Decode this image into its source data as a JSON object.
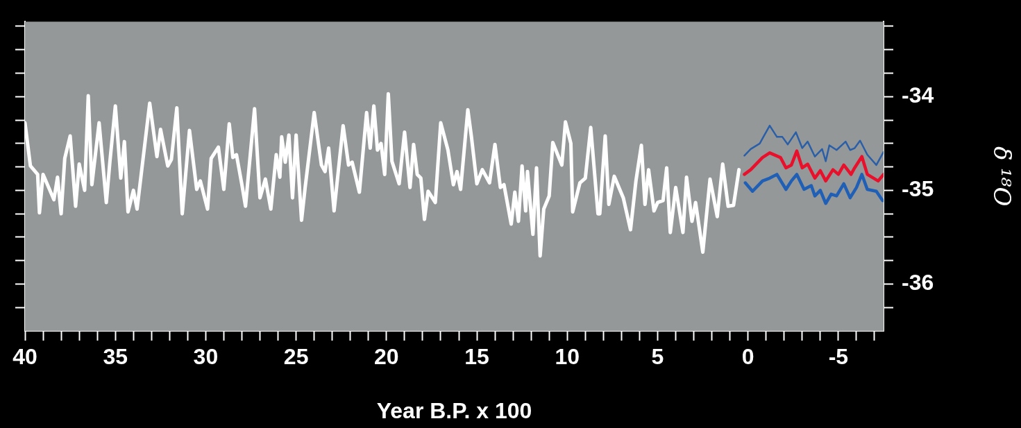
{
  "chart_data": {
    "type": "line",
    "xlabel": "Year B.P. x 100",
    "ylabel": "δ ¹⁸O",
    "xlim": [
      40,
      -7.5
    ],
    "ylim": [
      -36.5,
      -33.2
    ],
    "xticks": [
      40,
      {
        "value": 39,
        "label": null
      },
      {
        "value": 38,
        "label": null
      },
      {
        "value": 37,
        "label": null
      },
      {
        "value": 36,
        "label": null
      },
      35,
      {
        "value": 34,
        "label": null
      },
      {
        "value": 33,
        "label": null
      },
      {
        "value": 32,
        "label": null
      },
      {
        "value": 31,
        "label": null
      },
      30,
      {
        "value": 29,
        "label": null
      },
      {
        "value": 28,
        "label": null
      },
      {
        "value": 27,
        "label": null
      },
      {
        "value": 26,
        "label": null
      },
      25,
      {
        "value": 24,
        "label": null
      },
      {
        "value": 23,
        "label": null
      },
      {
        "value": 22,
        "label": null
      },
      {
        "value": 21,
        "label": null
      },
      20,
      {
        "value": 19,
        "label": null
      },
      {
        "value": 18,
        "label": null
      },
      {
        "value": 17,
        "label": null
      },
      {
        "value": 16,
        "label": null
      },
      15,
      {
        "value": 14,
        "label": null
      },
      {
        "value": 13,
        "label": null
      },
      {
        "value": 12,
        "label": null
      },
      {
        "value": 11,
        "label": null
      },
      10,
      {
        "value": 9,
        "label": null
      },
      {
        "value": 8,
        "label": null
      },
      {
        "value": 7,
        "label": null
      },
      {
        "value": 6,
        "label": null
      },
      5,
      {
        "value": 4,
        "label": null
      },
      {
        "value": 3,
        "label": null
      },
      {
        "value": 2,
        "label": null
      },
      {
        "value": 1,
        "label": null
      },
      0,
      {
        "value": -1,
        "label": null
      },
      {
        "value": -2,
        "label": null
      },
      {
        "value": -3,
        "label": null
      },
      {
        "value": -4,
        "label": null
      },
      -5,
      {
        "value": -6,
        "label": null
      },
      {
        "value": -7,
        "label": null
      }
    ],
    "yticks": [
      {
        "value": -36.25,
        "label": null
      },
      -36,
      {
        "value": -35.75,
        "label": null
      },
      {
        "value": -35.5,
        "label": null
      },
      {
        "value": -35.25,
        "label": null
      },
      -35,
      {
        "value": -34.75,
        "label": null
      },
      {
        "value": -34.5,
        "label": null
      },
      {
        "value": -34.25,
        "label": null
      },
      -34,
      {
        "value": -33.75,
        "label": null
      },
      {
        "value": -33.5,
        "label": null
      },
      {
        "value": -33.25,
        "label": null
      }
    ],
    "marker": "none",
    "line_style": "solid",
    "series": [
      {
        "color": "#ffffff",
        "x": [
          40.0,
          39.7,
          39.3,
          39.2,
          39.0,
          38.4,
          38.2,
          38.0,
          37.8,
          37.5,
          37.2,
          37.0,
          36.7,
          36.5,
          36.3,
          35.9,
          35.5,
          35.3,
          35.0,
          34.7,
          34.5,
          34.3,
          34.0,
          33.8,
          33.1,
          32.7,
          32.5,
          32.1,
          31.9,
          31.6,
          31.3,
          30.9,
          30.5,
          30.3,
          29.9,
          29.7,
          29.3,
          29.0,
          28.7,
          28.5,
          28.3,
          28.0,
          27.8,
          27.3,
          27.0,
          26.7,
          26.4,
          26.1,
          25.9,
          25.8,
          25.6,
          25.4,
          25.2,
          25.0,
          24.7,
          24.5,
          24.0,
          23.6,
          23.4,
          23.2,
          22.9,
          22.4,
          22.1,
          21.9,
          21.5,
          21.1,
          20.9,
          20.7,
          20.5,
          20.3,
          20.1,
          19.9,
          19.7,
          19.3,
          19.0,
          18.7,
          18.5,
          18.3,
          18.1,
          17.9,
          17.7,
          17.3,
          17.0,
          16.6,
          16.3,
          16.1,
          15.9,
          15.5,
          15.3,
          15.0,
          14.7,
          14.3,
          14.0,
          13.7,
          13.5,
          13.1,
          12.9,
          12.7,
          12.5,
          12.3,
          12.2,
          11.9,
          11.7,
          11.5,
          11.3,
          11.0,
          10.8,
          10.3,
          10.1,
          9.8,
          9.7,
          9.3,
          9.0,
          8.7,
          8.3,
          8.2,
          7.9,
          7.7,
          7.4,
          6.9,
          6.5,
          6.2,
          5.9,
          5.7,
          5.5,
          5.2,
          5.0,
          4.7,
          4.5,
          4.3,
          4.0,
          3.6,
          3.4,
          3.1,
          2.9,
          2.5,
          2.1,
          1.7,
          1.4,
          1.1,
          0.8,
          0.5
        ],
        "values": [
          -34.28,
          -34.74,
          -34.83,
          -35.24,
          -34.83,
          -35.1,
          -34.86,
          -35.25,
          -34.66,
          -34.42,
          -35.17,
          -34.72,
          -35.0,
          -33.99,
          -34.94,
          -34.28,
          -35.13,
          -34.69,
          -34.1,
          -34.87,
          -34.48,
          -35.23,
          -35.0,
          -35.2,
          -34.07,
          -34.64,
          -34.35,
          -34.74,
          -34.67,
          -34.12,
          -35.25,
          -34.36,
          -34.99,
          -34.9,
          -35.2,
          -34.66,
          -34.54,
          -34.99,
          -34.29,
          -34.65,
          -34.62,
          -34.94,
          -35.17,
          -34.13,
          -35.08,
          -34.88,
          -35.2,
          -34.62,
          -34.86,
          -34.43,
          -34.7,
          -34.41,
          -35.08,
          -34.41,
          -35.32,
          -34.97,
          -34.17,
          -34.73,
          -34.8,
          -34.55,
          -35.22,
          -34.31,
          -34.73,
          -34.7,
          -35.02,
          -34.17,
          -34.55,
          -34.1,
          -34.57,
          -34.5,
          -34.83,
          -33.97,
          -34.69,
          -34.93,
          -34.38,
          -34.97,
          -34.51,
          -34.83,
          -34.87,
          -35.31,
          -35.01,
          -35.13,
          -34.28,
          -34.57,
          -34.94,
          -34.8,
          -34.99,
          -34.14,
          -34.43,
          -34.93,
          -34.78,
          -34.92,
          -34.51,
          -34.97,
          -34.94,
          -35.36,
          -35.02,
          -35.33,
          -34.74,
          -35.22,
          -34.8,
          -35.47,
          -34.76,
          -35.7,
          -35.2,
          -35.06,
          -34.49,
          -34.73,
          -34.27,
          -34.5,
          -35.23,
          -34.92,
          -34.87,
          -34.33,
          -35.25,
          -35.25,
          -34.42,
          -35.15,
          -34.85,
          -35.08,
          -35.42,
          -34.9,
          -34.52,
          -35.15,
          -34.78,
          -35.22,
          -35.13,
          -35.11,
          -34.76,
          -35.45,
          -34.97,
          -35.45,
          -34.86,
          -35.33,
          -35.13,
          -35.66,
          -34.88,
          -35.28,
          -34.72,
          -35.17,
          -35.16,
          -34.78
        ]
      },
      {
        "color": "#2a5fa8",
        "x": [
          0.2,
          -0.15,
          -0.65,
          -0.85,
          -1.2,
          -1.6,
          -1.9,
          -2.2,
          -2.65,
          -3.0,
          -3.3,
          -3.7,
          -4.1,
          -4.3,
          -4.5,
          -4.9,
          -5.4,
          -5.65,
          -5.9,
          -6.2,
          -6.6,
          -7.1,
          -7.5
        ],
        "values": [
          -34.63,
          -34.56,
          -34.5,
          -34.43,
          -34.31,
          -34.43,
          -34.43,
          -34.51,
          -34.38,
          -34.55,
          -34.48,
          -34.64,
          -34.56,
          -34.69,
          -34.52,
          -34.57,
          -34.48,
          -34.57,
          -34.55,
          -34.47,
          -34.62,
          -34.73,
          -34.59
        ]
      },
      {
        "color": "#e8102a",
        "x": [
          0.2,
          -0.15,
          -0.8,
          -1.2,
          -1.8,
          -2.1,
          -2.4,
          -2.7,
          -3.0,
          -3.3,
          -3.7,
          -4.0,
          -4.3,
          -4.7,
          -5.0,
          -5.3,
          -5.7,
          -5.9,
          -6.3,
          -6.6,
          -7.2,
          -7.5
        ],
        "values": [
          -34.83,
          -34.78,
          -34.65,
          -34.6,
          -34.65,
          -34.76,
          -34.73,
          -34.58,
          -34.76,
          -34.72,
          -34.87,
          -34.79,
          -34.9,
          -34.78,
          -34.83,
          -34.73,
          -34.83,
          -34.76,
          -34.64,
          -34.83,
          -34.9,
          -34.83
        ]
      },
      {
        "color": "#1f5fb5",
        "x": [
          0.15,
          -0.25,
          -0.8,
          -1.2,
          -1.6,
          -2.1,
          -2.4,
          -2.7,
          -3.1,
          -3.5,
          -3.7,
          -4.0,
          -4.3,
          -4.6,
          -4.9,
          -5.3,
          -5.65,
          -6.0,
          -6.3,
          -6.6,
          -7.1,
          -7.45
        ],
        "values": [
          -34.92,
          -35.01,
          -34.9,
          -34.87,
          -34.83,
          -34.99,
          -34.9,
          -34.83,
          -34.99,
          -34.95,
          -35.06,
          -35.0,
          -35.14,
          -35.04,
          -35.06,
          -34.93,
          -35.08,
          -34.97,
          -34.83,
          -34.99,
          -35.01,
          -35.11
        ]
      }
    ]
  }
}
